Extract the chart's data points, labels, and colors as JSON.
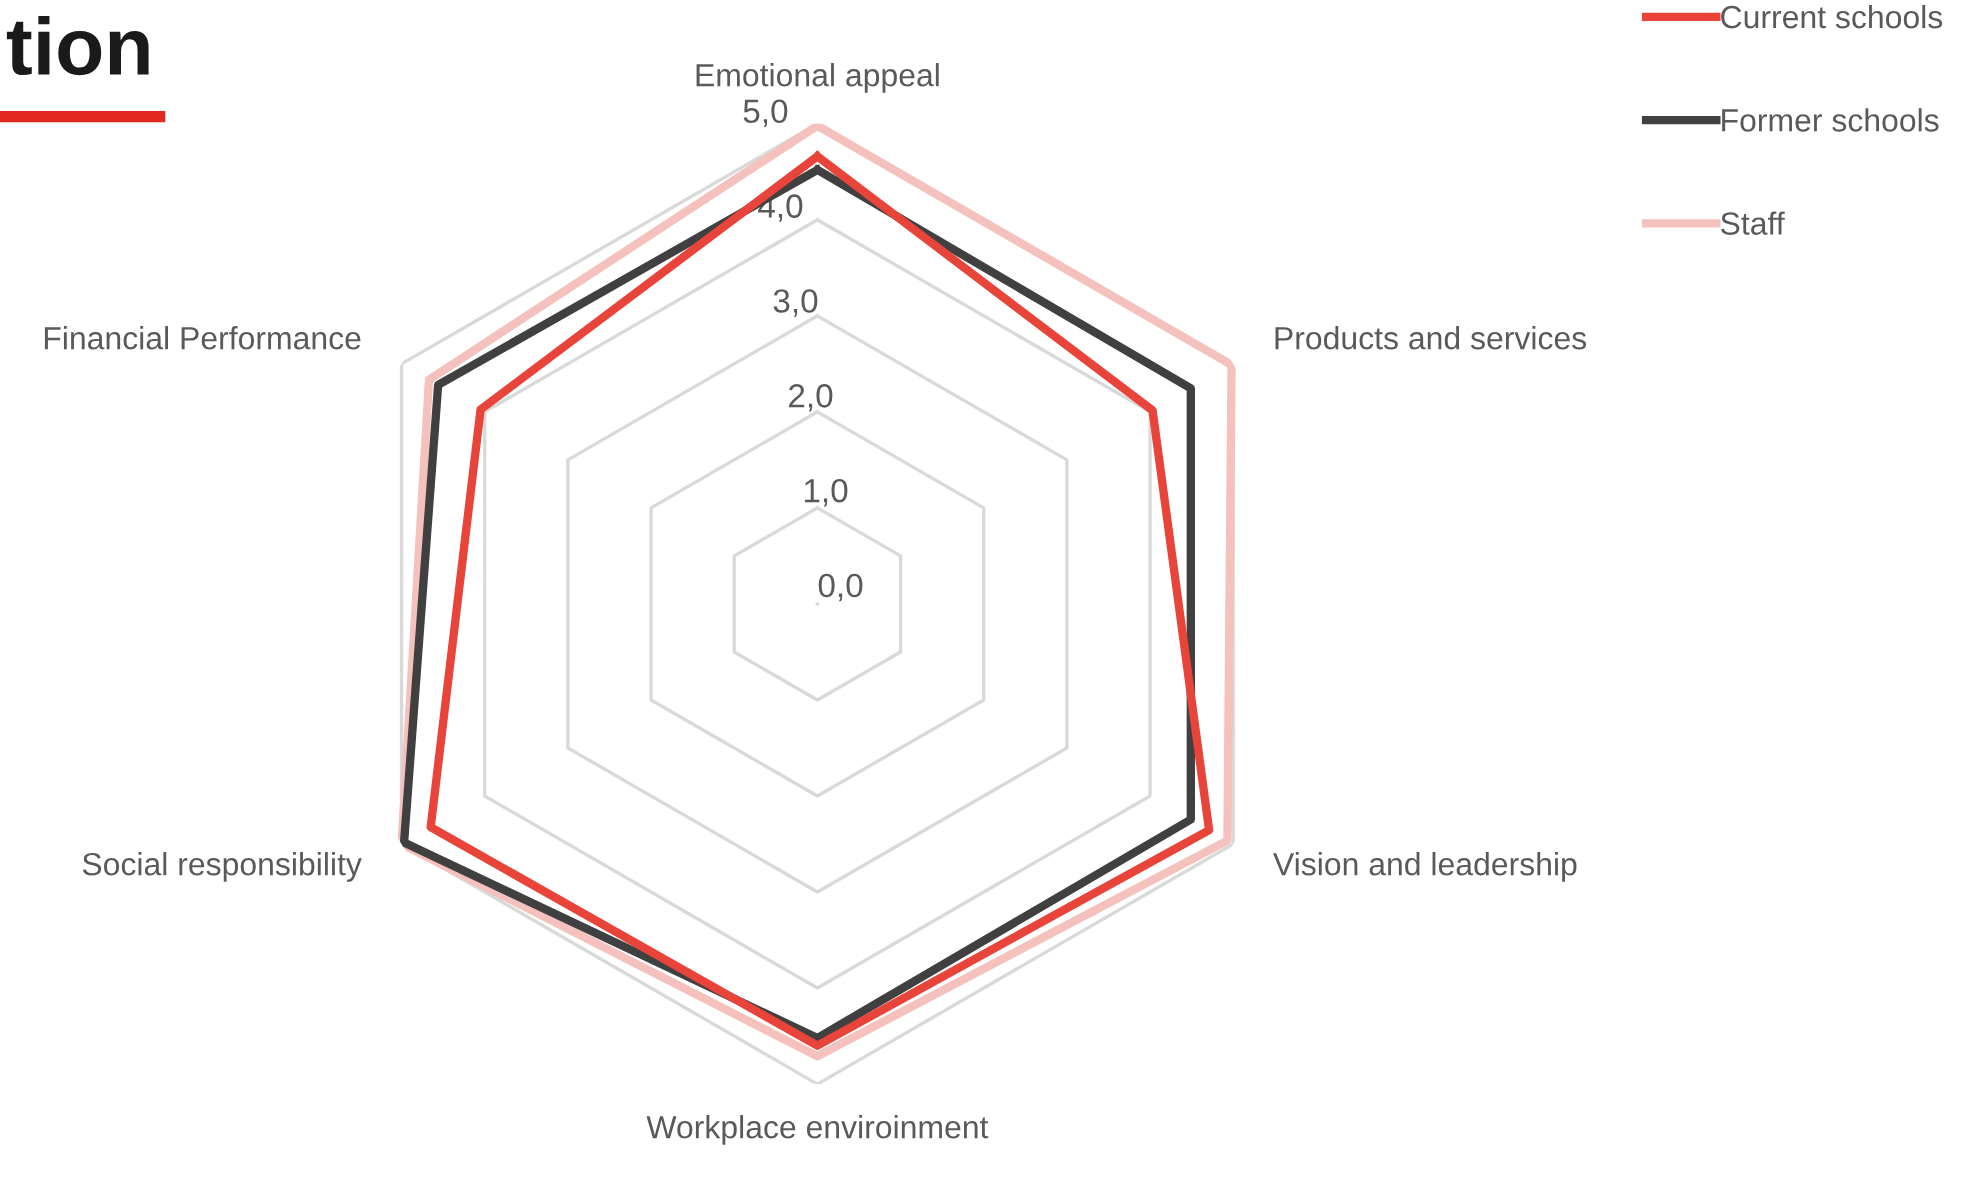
{
  "chart_data": {
    "type": "radar",
    "title": "tion",
    "categories": [
      "Emotional appeal",
      "Products and services",
      "Vision and leadership",
      "Workplace enviroinment",
      "Social responsibility",
      "Financial Performance"
    ],
    "series": [
      {
        "name": "Current schools",
        "color": "#e8443a",
        "values": [
          4.66,
          4.03,
          4.71,
          4.6,
          4.65,
          4.05
        ]
      },
      {
        "name": "Former schools",
        "color": "#404040",
        "values": [
          4.52,
          4.49,
          4.49,
          4.52,
          4.97,
          4.56
        ]
      },
      {
        "name": "Staff",
        "color": "#f4c1bd",
        "values": [
          4.98,
          4.98,
          4.93,
          4.71,
          5.0,
          4.67
        ]
      }
    ],
    "ylim": [
      0,
      5
    ],
    "yticks": [
      {
        "value": 0,
        "label": "0,0"
      },
      {
        "value": 1,
        "label": "1,0"
      },
      {
        "value": 2,
        "label": "2,0"
      },
      {
        "value": 3,
        "label": "3,0"
      },
      {
        "value": 4,
        "label": "4,0"
      },
      {
        "value": 5,
        "label": "5,0"
      }
    ],
    "grid": true,
    "legend": "top right",
    "marker": "none",
    "line_style": "solid"
  }
}
